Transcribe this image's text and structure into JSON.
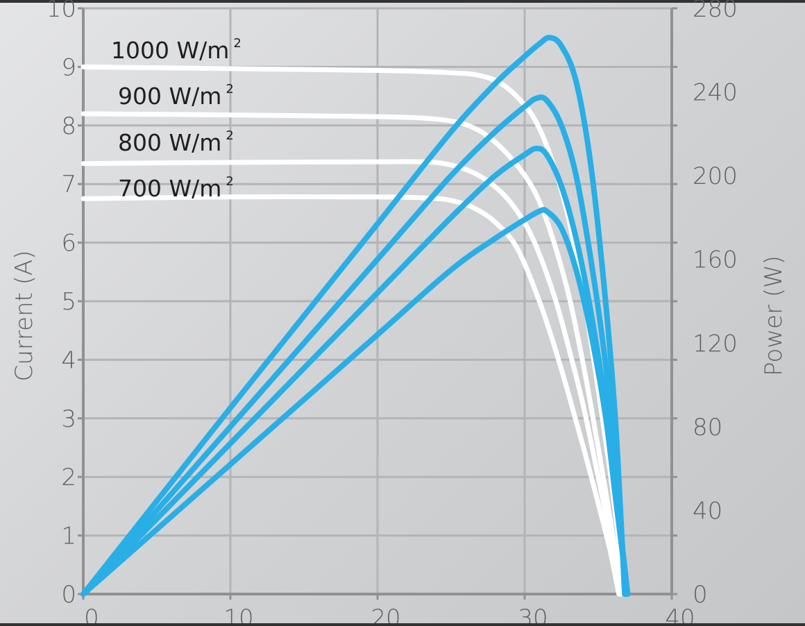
{
  "chart_data": {
    "type": "line",
    "title": "",
    "xlabel": "",
    "ylabel": "Current (A)",
    "y2label": "Power (W)",
    "xlim": [
      0,
      40
    ],
    "ylim": [
      0,
      10
    ],
    "y2lim": [
      0,
      280
    ],
    "x_ticks": [
      0,
      10,
      20,
      30,
      40
    ],
    "y_ticks": [
      0,
      1,
      2,
      3,
      4,
      5,
      6,
      7,
      8,
      9,
      10
    ],
    "y2_ticks": [
      0,
      40,
      80,
      120,
      160,
      200,
      240,
      280
    ],
    "grid": true,
    "colors": {
      "current": "#ffffff",
      "power": "#29aee6",
      "grid": "#b2b4b6",
      "axis": "#8f9193"
    },
    "annotations": [
      {
        "base": "1000  W/m",
        "sup": "2"
      },
      {
        "base": "900  W/m",
        "sup": "2"
      },
      {
        "base": "800  W/m",
        "sup": "2"
      },
      {
        "base": "700  W/m",
        "sup": "2"
      }
    ],
    "current_series": [
      {
        "irradiance": 1000,
        "x": [
          0,
          10,
          20,
          25,
          27,
          28.5,
          30,
          31,
          32,
          33,
          34,
          35,
          35.8,
          36.3,
          36.8
        ],
        "y": [
          9.0,
          8.97,
          8.94,
          8.9,
          8.85,
          8.7,
          8.35,
          7.95,
          7.3,
          6.4,
          5.1,
          3.5,
          2.1,
          1.1,
          0
        ]
      },
      {
        "irradiance": 900,
        "x": [
          0,
          10,
          20,
          23.5,
          25.5,
          27,
          28.5,
          30,
          31,
          32,
          33,
          34,
          35,
          35.8,
          36.6
        ],
        "y": [
          8.2,
          8.18,
          8.15,
          8.12,
          8.05,
          7.9,
          7.6,
          7.15,
          6.7,
          6.0,
          5.1,
          3.9,
          2.5,
          1.3,
          0
        ]
      },
      {
        "irradiance": 800,
        "x": [
          0,
          10,
          20,
          23,
          24.5,
          26,
          27.5,
          29,
          30.5,
          32,
          33,
          34,
          35,
          35.8,
          36.5
        ],
        "y": [
          7.35,
          7.37,
          7.38,
          7.38,
          7.35,
          7.25,
          7.05,
          6.7,
          6.1,
          5.1,
          4.2,
          3.2,
          2.0,
          1.0,
          0
        ]
      },
      {
        "irradiance": 700,
        "x": [
          0,
          10,
          20,
          23.5,
          25,
          26.5,
          28,
          29.5,
          31,
          32,
          33,
          34,
          35,
          35.8,
          36.4
        ],
        "y": [
          6.75,
          6.78,
          6.78,
          6.76,
          6.72,
          6.6,
          6.35,
          5.9,
          5.0,
          4.25,
          3.4,
          2.5,
          1.55,
          0.75,
          0
        ]
      }
    ],
    "power_series": [
      {
        "irradiance": 1000,
        "x": [
          0,
          5,
          10,
          15,
          20,
          25,
          28,
          30,
          31,
          31.7,
          32.5,
          33.5,
          34.5,
          35.5,
          36.2,
          36.8
        ],
        "y": [
          0,
          44.5,
          89,
          133,
          177,
          221,
          244,
          257,
          263,
          266,
          262,
          245,
          205,
          140,
          80,
          0
        ]
      },
      {
        "irradiance": 900,
        "x": [
          0,
          5,
          10,
          15,
          20,
          25,
          28,
          30,
          30.8,
          31.5,
          32.5,
          33.5,
          34.5,
          35.5,
          36.2,
          36.9
        ],
        "y": [
          0,
          40,
          80,
          120,
          160,
          200,
          221,
          233,
          237,
          236,
          224,
          200,
          160,
          110,
          60,
          0
        ]
      },
      {
        "irradiance": 800,
        "x": [
          0,
          5,
          10,
          15,
          20,
          25,
          28,
          30,
          30.8,
          31.5,
          32.5,
          33.5,
          34.5,
          35.5,
          36.2,
          37.0
        ],
        "y": [
          0,
          36,
          72,
          108,
          144,
          180,
          200,
          210,
          213,
          210,
          195,
          170,
          135,
          90,
          50,
          0
        ]
      },
      {
        "irradiance": 700,
        "x": [
          0,
          5,
          10,
          15,
          20,
          25,
          28,
          30,
          31,
          31.5,
          32.5,
          33.5,
          34.5,
          35.5,
          36.2,
          37.0
        ],
        "y": [
          0,
          31,
          62,
          93,
          124,
          155,
          170,
          179,
          183,
          183,
          175,
          155,
          125,
          85,
          45,
          0
        ]
      }
    ]
  }
}
